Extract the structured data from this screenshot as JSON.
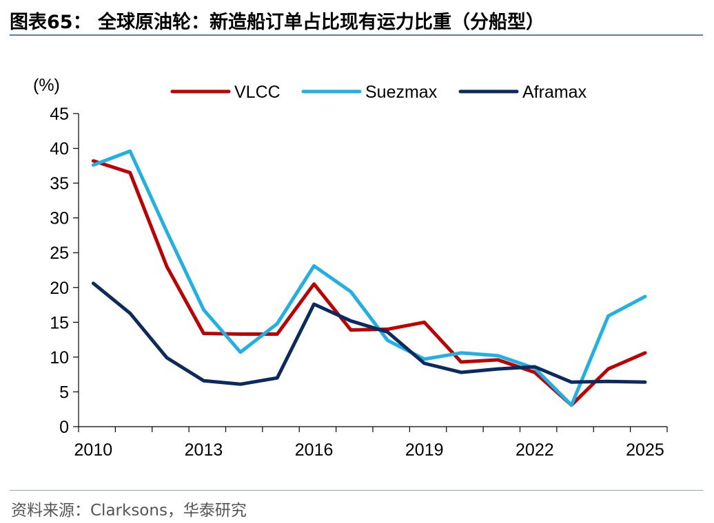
{
  "header": {
    "title": "图表65： 全球原油轮：新造船订单占比现有运力比重（分船型）"
  },
  "footer": {
    "source": "资料来源：Clarksons，华泰研究"
  },
  "chart_data": {
    "type": "line",
    "ylabel": "(%)",
    "ylim": [
      0,
      45
    ],
    "yticks": [
      0,
      5,
      10,
      15,
      20,
      25,
      30,
      35,
      40,
      45
    ],
    "xlim": [
      2009.6,
      2025.6
    ],
    "xticks": [
      2010,
      2013,
      2016,
      2019,
      2022,
      2025
    ],
    "legend_position": "top",
    "x": [
      2010,
      2011,
      2012,
      2013,
      2014,
      2015,
      2016,
      2017,
      2018,
      2019,
      2020,
      2021,
      2022,
      2023,
      2024,
      2025
    ],
    "series": [
      {
        "name": "VLCC",
        "color": "#c00000",
        "values": [
          38.2,
          36.5,
          23.0,
          13.4,
          13.3,
          13.3,
          20.5,
          13.9,
          14.0,
          15.0,
          9.3,
          9.6,
          7.8,
          3.1,
          8.3,
          10.6
        ]
      },
      {
        "name": "Suezmax",
        "color": "#1fb0e6",
        "values": [
          37.6,
          39.6,
          28.0,
          16.8,
          10.7,
          14.8,
          23.1,
          19.4,
          12.4,
          9.7,
          10.6,
          10.2,
          8.4,
          3.1,
          15.9,
          18.7
        ]
      },
      {
        "name": "Aframax",
        "color": "#0b2a5f",
        "values": [
          20.6,
          16.3,
          9.9,
          6.6,
          6.1,
          7.0,
          17.6,
          15.2,
          13.6,
          9.1,
          7.8,
          8.3,
          8.6,
          6.4,
          6.5,
          6.4
        ]
      }
    ]
  }
}
